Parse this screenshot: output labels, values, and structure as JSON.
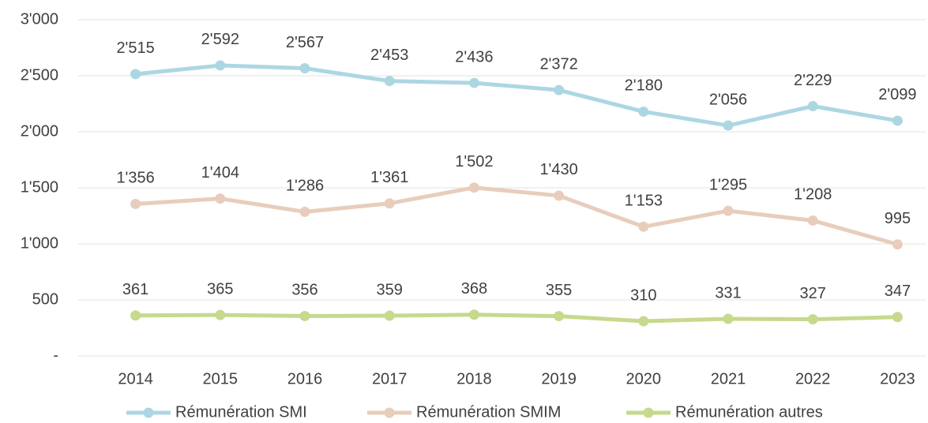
{
  "chart_data": {
    "type": "line",
    "categories": [
      "2014",
      "2015",
      "2016",
      "2017",
      "2018",
      "2019",
      "2020",
      "2021",
      "2022",
      "2023"
    ],
    "series": [
      {
        "name": "Rémunération SMI",
        "color": "#acd7e2",
        "values": [
          2515,
          2592,
          2567,
          2453,
          2436,
          2372,
          2180,
          2056,
          2229,
          2099
        ],
        "value_labels": [
          "2'515",
          "2'592",
          "2'567",
          "2'453",
          "2'436",
          "2'372",
          "2'180",
          "2'056",
          "2'229",
          "2'099"
        ]
      },
      {
        "name": "Rémunération SMIM",
        "color": "#e8cdbc",
        "values": [
          1356,
          1404,
          1286,
          1361,
          1502,
          1430,
          1153,
          1295,
          1208,
          995
        ],
        "value_labels": [
          "1'356",
          "1'404",
          "1'286",
          "1'361",
          "1'502",
          "1'430",
          "1'153",
          "1'295",
          "1'208",
          "995"
        ]
      },
      {
        "name": "Rémunération autres",
        "color": "#c6d98c",
        "values": [
          361,
          365,
          356,
          359,
          368,
          355,
          310,
          331,
          327,
          347
        ]
      }
    ],
    "ylim": [
      0,
      3000
    ],
    "yticks": [
      {
        "value": 0,
        "label": "-"
      },
      500,
      {
        "value": 1000,
        "label": "1'000"
      },
      {
        "value": 1500,
        "label": "1'500"
      },
      {
        "value": 2000,
        "label": "2'000"
      },
      {
        "value": 2500,
        "label": "2'500"
      },
      {
        "value": 3000,
        "label": "3'000"
      }
    ],
    "grid": true,
    "legend": "bottom"
  }
}
